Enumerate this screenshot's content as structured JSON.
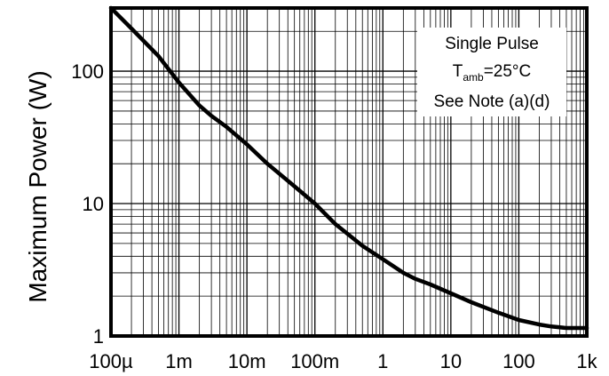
{
  "chart_data": {
    "type": "line",
    "title": "",
    "xlabel": "",
    "ylabel": "Maximum Power (W)",
    "x_scale": "log",
    "y_scale": "log",
    "xlim": [
      0.0001,
      1000
    ],
    "ylim": [
      1,
      300
    ],
    "grid": true,
    "x_ticks": [
      {
        "value": 0.0001,
        "label": "100µ"
      },
      {
        "value": 0.001,
        "label": "1m"
      },
      {
        "value": 0.01,
        "label": "10m"
      },
      {
        "value": 0.1,
        "label": "100m"
      },
      {
        "value": 1,
        "label": "1"
      },
      {
        "value": 10,
        "label": "10"
      },
      {
        "value": 100,
        "label": "100"
      },
      {
        "value": 1000,
        "label": "1k"
      }
    ],
    "y_ticks": [
      {
        "value": 1,
        "label": "1"
      },
      {
        "value": 10,
        "label": "10"
      },
      {
        "value": 100,
        "label": "100"
      }
    ],
    "annotation": {
      "line1": "Single Pulse",
      "line2_main": "T",
      "line2_sub": "amb",
      "line2_rest": "=25°C",
      "line3": "See Note (a)(d)"
    },
    "series": [
      {
        "x": [
          0.0001,
          0.0002,
          0.0005,
          0.001,
          0.002,
          0.003,
          0.005,
          0.01,
          0.02,
          0.05,
          0.1,
          0.2,
          0.5,
          1,
          2,
          3,
          5,
          10,
          20,
          50,
          100,
          200,
          300,
          500,
          1000
        ],
        "y": [
          300,
          210,
          130,
          82,
          55,
          46,
          38,
          28,
          20,
          13.5,
          10,
          7,
          4.8,
          3.8,
          3.0,
          2.7,
          2.45,
          2.1,
          1.8,
          1.5,
          1.32,
          1.22,
          1.18,
          1.15,
          1.15
        ]
      }
    ]
  }
}
